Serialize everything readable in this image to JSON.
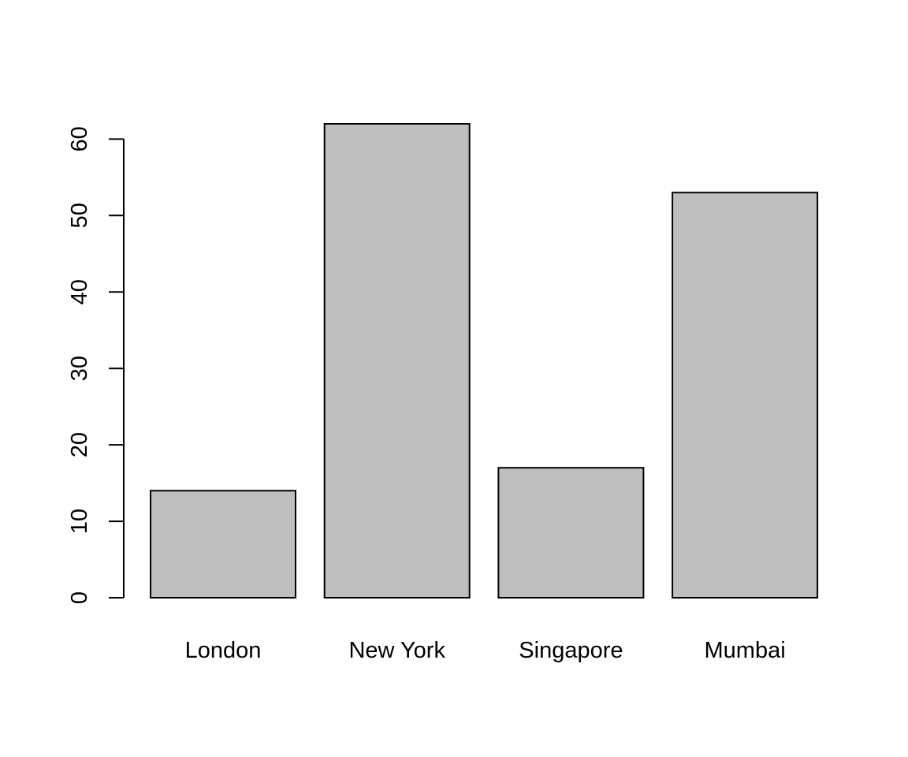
{
  "chart_data": {
    "type": "bar",
    "title": "",
    "xlabel": "",
    "ylabel": "",
    "categories": [
      "London",
      "New York",
      "Singapore",
      "Mumbai"
    ],
    "values": [
      14,
      62,
      17,
      53
    ],
    "ylim": [
      0,
      62
    ],
    "yticks": [
      0,
      10,
      20,
      30,
      40,
      50,
      60
    ],
    "ytick_labels": [
      "0",
      "10",
      "20",
      "30",
      "40",
      "50",
      "60"
    ],
    "bar_color": "#bebebe",
    "bar_border_color": "#000000",
    "grid": false,
    "legend": "none"
  }
}
